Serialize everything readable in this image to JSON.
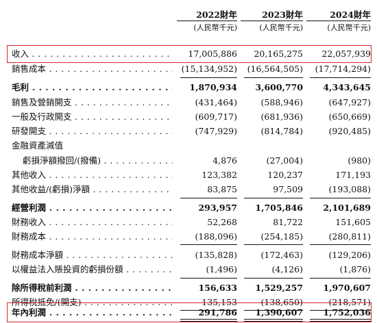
{
  "columns": [
    {
      "year": "2022財年",
      "unit": "(人民幣千元)"
    },
    {
      "year": "2023財年",
      "unit": "(人民幣千元)"
    },
    {
      "year": "2024財年",
      "unit": "(人民幣千元)"
    }
  ],
  "rows": [
    {
      "label": "收入",
      "values": [
        "17,005,886",
        "20,165,275",
        "22,057,939"
      ]
    },
    {
      "label": "銷售成本",
      "values": [
        "(15,134,952)",
        "(16,564,505)",
        "(17,714,294)"
      ]
    },
    {
      "label": "毛利",
      "values": [
        "1,870,934",
        "3,600,770",
        "4,343,645"
      ]
    },
    {
      "label": "銷售及營銷開支",
      "values": [
        "(431,464)",
        "(588,946)",
        "(647,927)"
      ]
    },
    {
      "label": "一般及行政開支",
      "values": [
        "(609,717)",
        "(681,936)",
        "(650,669)"
      ]
    },
    {
      "label": "研發開支",
      "values": [
        "(747,929)",
        "(814,784)",
        "(920,485)"
      ]
    },
    {
      "label": "金融資產減值",
      "values": [
        "",
        "",
        ""
      ]
    },
    {
      "label": "虧損淨額撥回/(撥備)",
      "values": [
        "4,876",
        "(27,004)",
        "(980)"
      ]
    },
    {
      "label": "其他收入",
      "values": [
        "123,382",
        "120,237",
        "171,193"
      ]
    },
    {
      "label": "其他收益/(虧損)淨額",
      "values": [
        "83,875",
        "97,509",
        "(193,088)"
      ]
    },
    {
      "label": "經營利潤",
      "values": [
        "293,957",
        "1,705,846",
        "2,101,689"
      ]
    },
    {
      "label": "財務收入",
      "values": [
        "52,268",
        "81,722",
        "151,605"
      ]
    },
    {
      "label": "財務成本",
      "values": [
        "(188,096)",
        "(254,185)",
        "(280,811)"
      ]
    },
    {
      "label": "財務成本淨額",
      "values": [
        "(135,828)",
        "(172,463)",
        "(129,206)"
      ]
    },
    {
      "label": "以權益法入賬投資的虧損份額",
      "values": [
        "(1,496)",
        "(4,126)",
        "(1,876)"
      ]
    },
    {
      "label": "除所得稅前利潤",
      "values": [
        "156,633",
        "1,529,257",
        "1,970,607"
      ]
    },
    {
      "label": "所得稅抵免/(開支)",
      "values": [
        "135,153",
        "(138,650)",
        "(218,571)"
      ]
    },
    {
      "label": "年內利潤",
      "values": [
        "291,786",
        "1,390,607",
        "1,752,036"
      ]
    }
  ]
}
